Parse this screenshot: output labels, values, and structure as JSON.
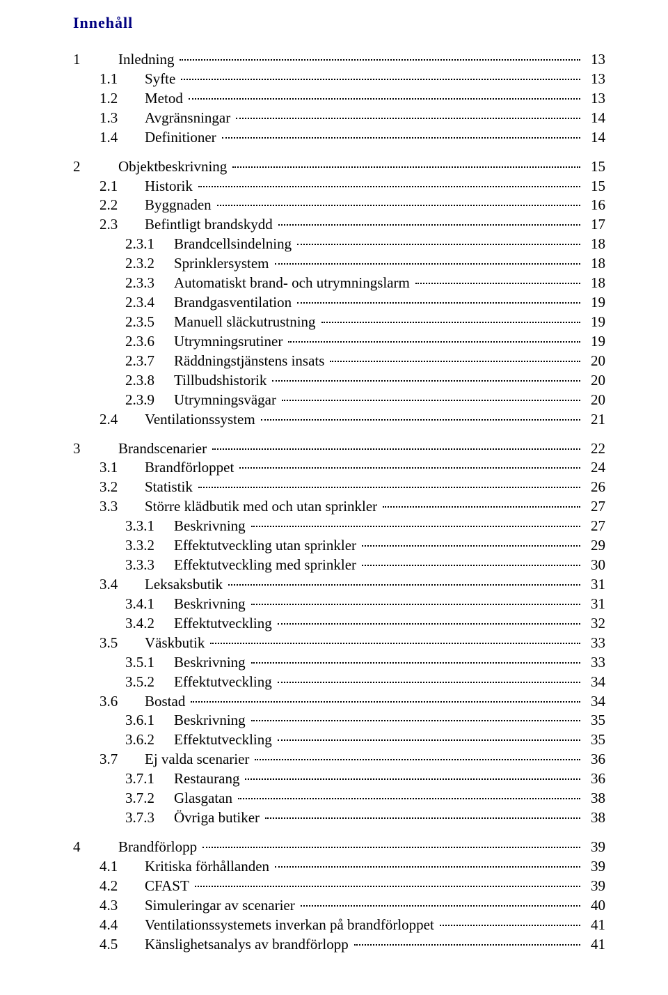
{
  "heading": "Innehåll",
  "entries": [
    {
      "level": 0,
      "num": "1",
      "title": "Inledning",
      "page": "13"
    },
    {
      "level": 1,
      "num": "1.1",
      "title": "Syfte",
      "page": "13"
    },
    {
      "level": 1,
      "num": "1.2",
      "title": "Metod",
      "page": "13"
    },
    {
      "level": 1,
      "num": "1.3",
      "title": "Avgränsningar",
      "page": "14"
    },
    {
      "level": 1,
      "num": "1.4",
      "title": "Definitioner",
      "page": "14"
    },
    {
      "level": 0,
      "num": "2",
      "title": "Objektbeskrivning",
      "page": "15"
    },
    {
      "level": 1,
      "num": "2.1",
      "title": "Historik",
      "page": "15"
    },
    {
      "level": 1,
      "num": "2.2",
      "title": "Byggnaden",
      "page": "16"
    },
    {
      "level": 1,
      "num": "2.3",
      "title": "Befintligt brandskydd",
      "page": "17"
    },
    {
      "level": 2,
      "num": "2.3.1",
      "title": "Brandcellsindelning",
      "page": "18"
    },
    {
      "level": 2,
      "num": "2.3.2",
      "title": "Sprinklersystem",
      "page": "18"
    },
    {
      "level": 2,
      "num": "2.3.3",
      "title": "Automatiskt brand- och utrymningslarm",
      "page": "18"
    },
    {
      "level": 2,
      "num": "2.3.4",
      "title": "Brandgasventilation",
      "page": "19"
    },
    {
      "level": 2,
      "num": "2.3.5",
      "title": "Manuell släckutrustning",
      "page": "19"
    },
    {
      "level": 2,
      "num": "2.3.6",
      "title": "Utrymningsrutiner",
      "page": "19"
    },
    {
      "level": 2,
      "num": "2.3.7",
      "title": "Räddningstjänstens insats",
      "page": "20"
    },
    {
      "level": 2,
      "num": "2.3.8",
      "title": "Tillbudshistorik",
      "page": "20"
    },
    {
      "level": 2,
      "num": "2.3.9",
      "title": "Utrymningsvägar",
      "page": "20"
    },
    {
      "level": 1,
      "num": "2.4",
      "title": "Ventilationssystem",
      "page": "21"
    },
    {
      "level": 0,
      "num": "3",
      "title": "Brandscenarier",
      "page": "22"
    },
    {
      "level": 1,
      "num": "3.1",
      "title": "Brandförloppet",
      "page": "24"
    },
    {
      "level": 1,
      "num": "3.2",
      "title": "Statistik",
      "page": "26"
    },
    {
      "level": 1,
      "num": "3.3",
      "title": "Större klädbutik med och utan sprinkler",
      "page": "27"
    },
    {
      "level": 2,
      "num": "3.3.1",
      "title": "Beskrivning",
      "page": "27"
    },
    {
      "level": 2,
      "num": "3.3.2",
      "title": "Effektutveckling utan sprinkler",
      "page": "29"
    },
    {
      "level": 2,
      "num": "3.3.3",
      "title": "Effektutveckling med sprinkler",
      "page": "30"
    },
    {
      "level": 1,
      "num": "3.4",
      "title": "Leksaksbutik",
      "page": "31"
    },
    {
      "level": 2,
      "num": "3.4.1",
      "title": "Beskrivning",
      "page": "31"
    },
    {
      "level": 2,
      "num": "3.4.2",
      "title": "Effektutveckling",
      "page": "32"
    },
    {
      "level": 1,
      "num": "3.5",
      "title": "Väskbutik",
      "page": "33"
    },
    {
      "level": 2,
      "num": "3.5.1",
      "title": "Beskrivning",
      "page": "33"
    },
    {
      "level": 2,
      "num": "3.5.2",
      "title": "Effektutveckling",
      "page": "34"
    },
    {
      "level": 1,
      "num": "3.6",
      "title": "Bostad",
      "page": "34"
    },
    {
      "level": 2,
      "num": "3.6.1",
      "title": "Beskrivning",
      "page": "35"
    },
    {
      "level": 2,
      "num": "3.6.2",
      "title": "Effektutveckling",
      "page": "35"
    },
    {
      "level": 1,
      "num": "3.7",
      "title": "Ej valda scenarier",
      "page": "36"
    },
    {
      "level": 2,
      "num": "3.7.1",
      "title": "Restaurang",
      "page": "36"
    },
    {
      "level": 2,
      "num": "3.7.2",
      "title": "Glasgatan",
      "page": "38"
    },
    {
      "level": 2,
      "num": "3.7.3",
      "title": "Övriga butiker",
      "page": "38"
    },
    {
      "level": 0,
      "num": "4",
      "title": "Brandförlopp",
      "page": "39"
    },
    {
      "level": 1,
      "num": "4.1",
      "title": "Kritiska förhållanden",
      "page": "39"
    },
    {
      "level": 1,
      "num": "4.2",
      "title": "CFAST",
      "page": "39"
    },
    {
      "level": 1,
      "num": "4.3",
      "title": "Simuleringar av scenarier",
      "page": "40"
    },
    {
      "level": 1,
      "num": "4.4",
      "title": "Ventilationssystemets inverkan på brandförloppet",
      "page": "41"
    },
    {
      "level": 1,
      "num": "4.5",
      "title": "Känslighetsanalys av brandförlopp",
      "page": "41"
    }
  ]
}
